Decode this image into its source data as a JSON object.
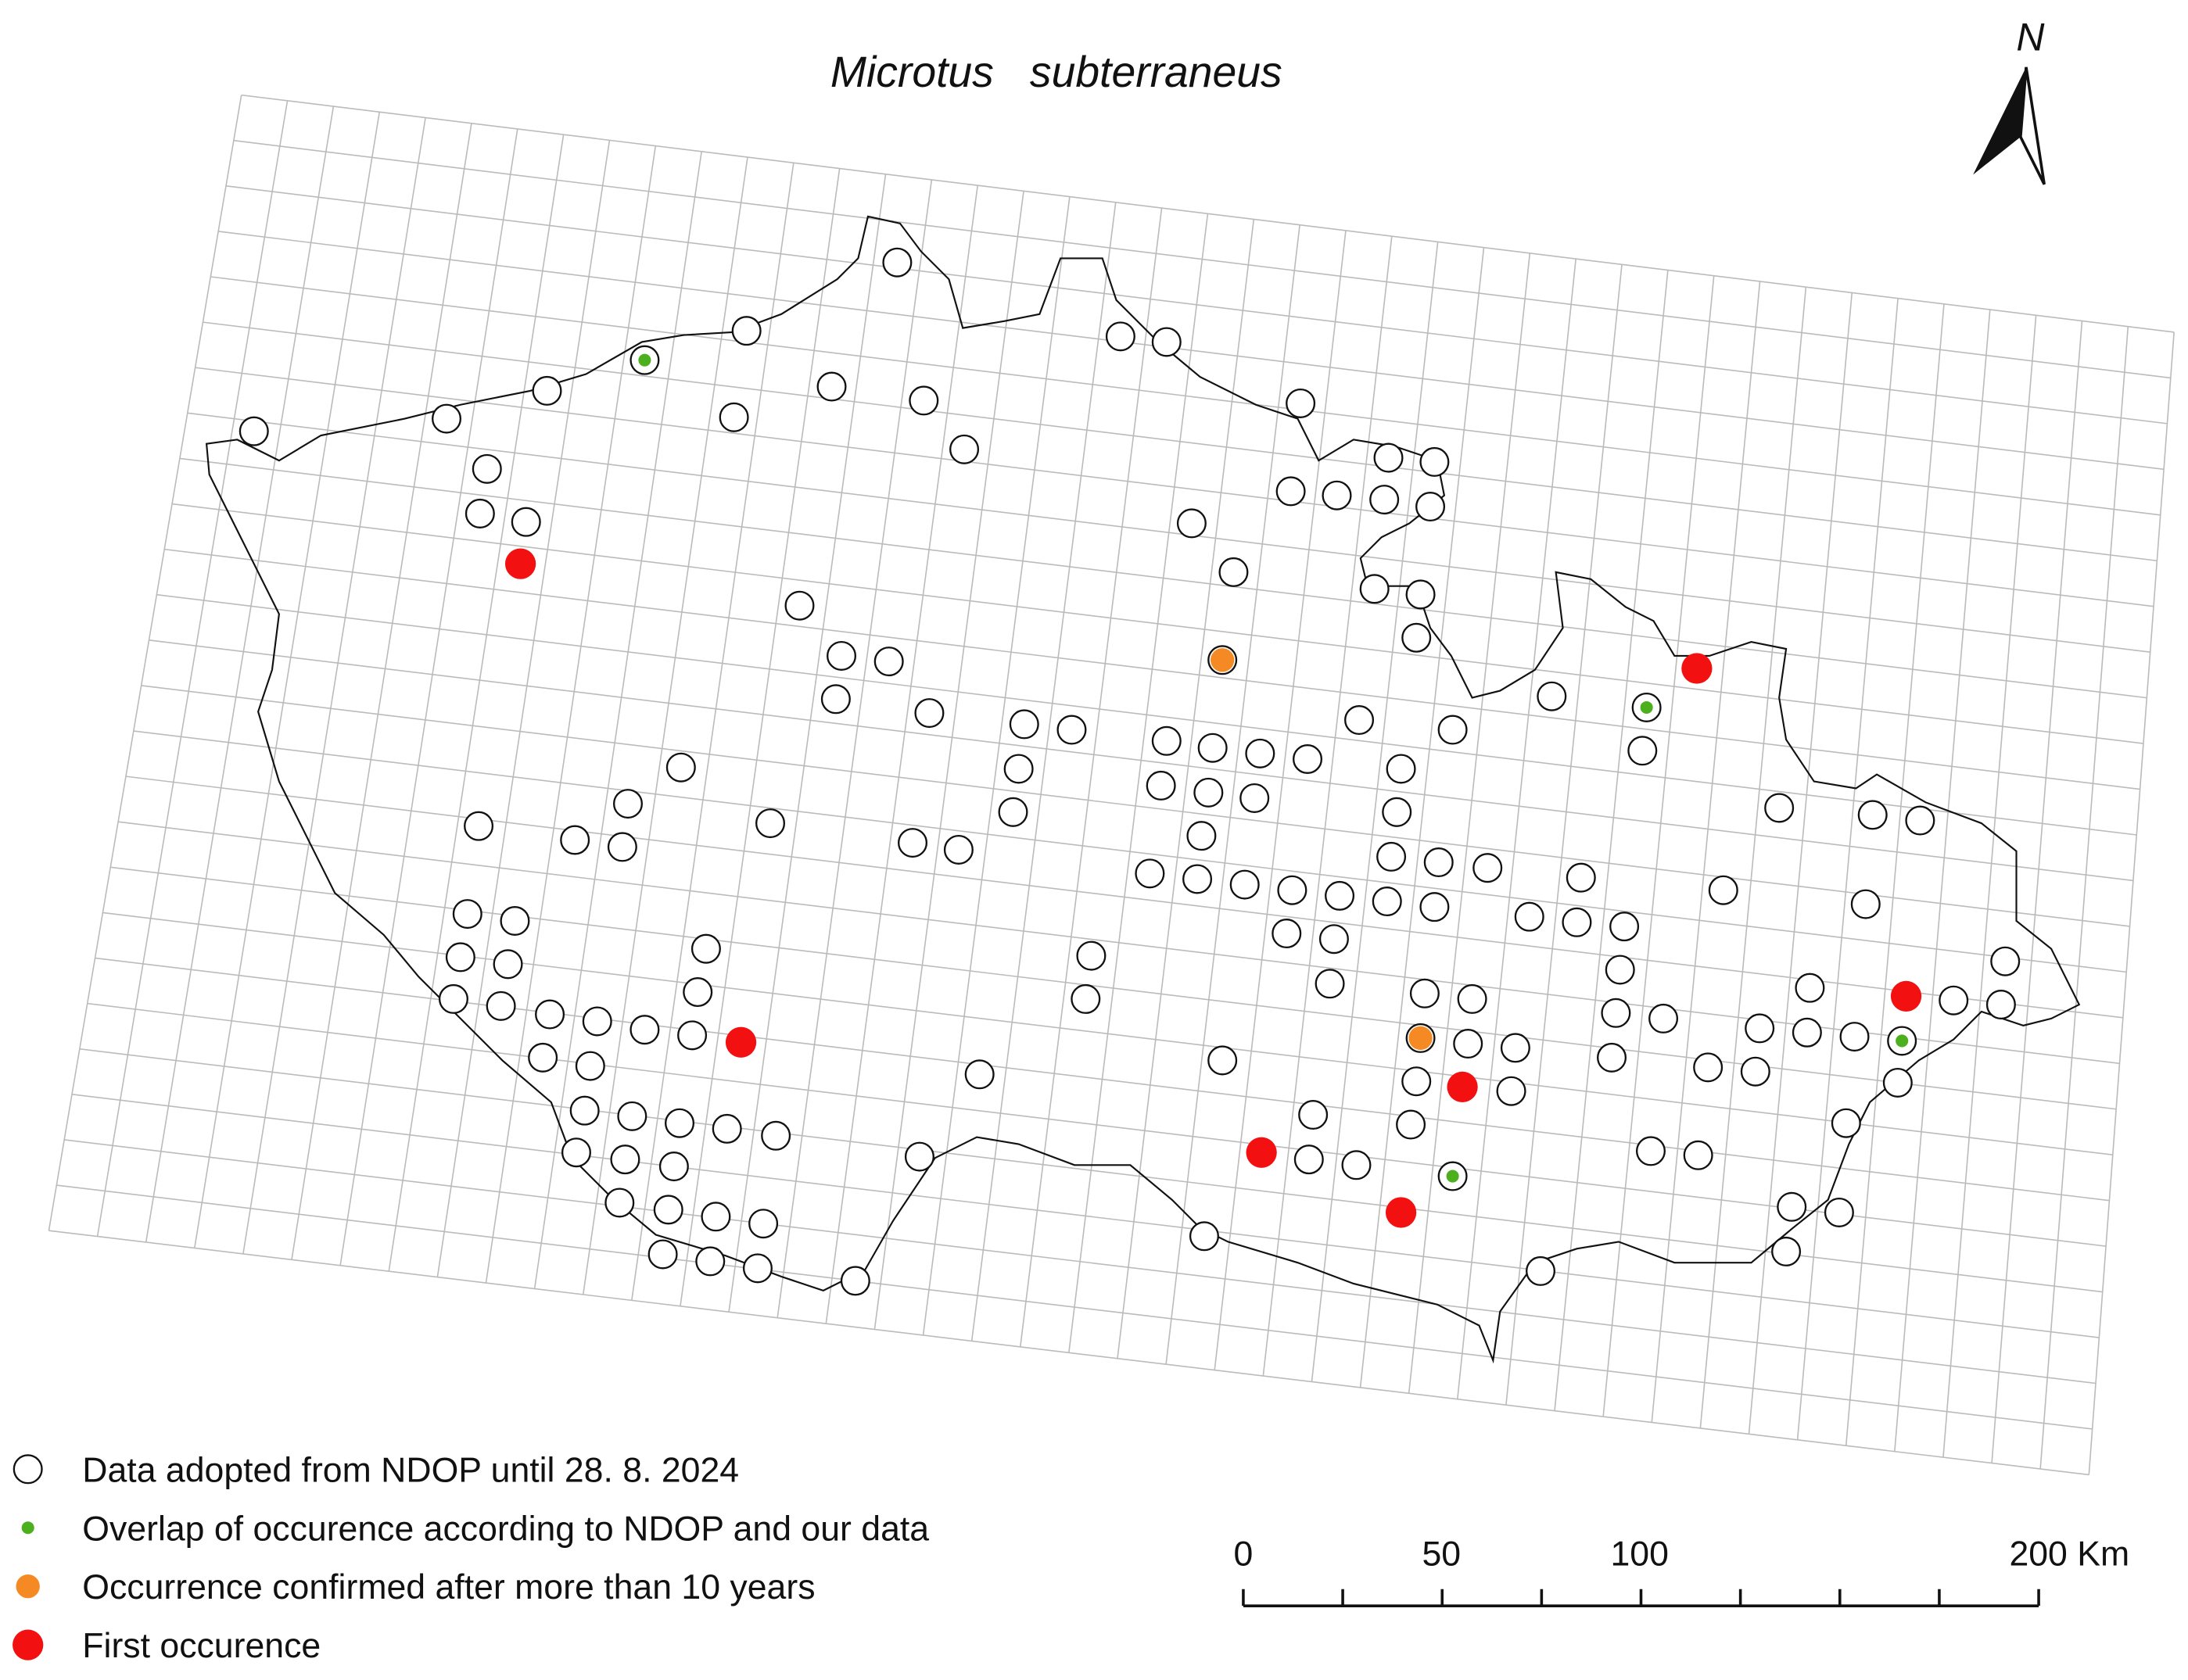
{
  "title": "Microtus   subterraneus",
  "north_arrow": {
    "label": "N"
  },
  "legend": [
    {
      "label": "Data adopted from NDOP until 28. 8. 2024"
    },
    {
      "label": "Overlap of occurence according to NDOP and our data"
    },
    {
      "label": "Occurrence confirmed after more than 10 years"
    },
    {
      "label": "First occurence"
    }
  ],
  "scale_bar": {
    "labels": [
      "0",
      "50",
      "100",
      "200 Km"
    ]
  }
}
